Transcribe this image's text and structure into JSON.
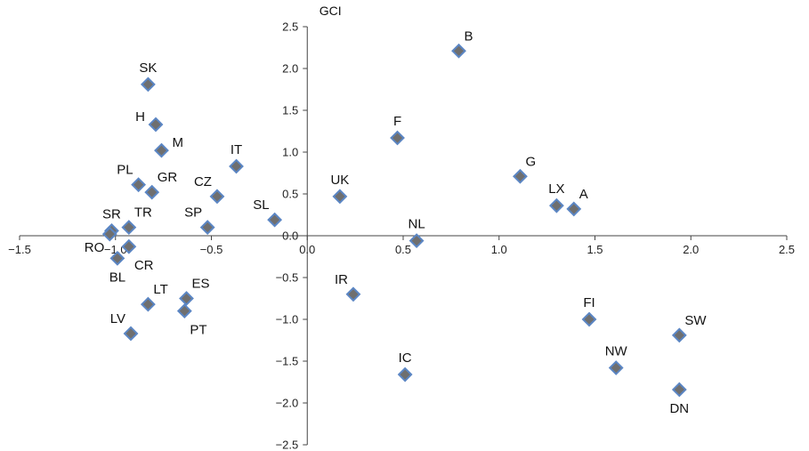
{
  "chart_data": {
    "type": "scatter",
    "title": "",
    "xlabel": "",
    "ylabel": "GCI",
    "xlim": [
      -1.5,
      2.5
    ],
    "ylim": [
      -2.5,
      2.5
    ],
    "xticks": [
      -1.5,
      -1.0,
      -0.5,
      0.0,
      0.5,
      1.0,
      1.5,
      2.0,
      2.5
    ],
    "xtick_labels": [
      "−1.5",
      "−1.0",
      "−0.5",
      "0.0",
      "0.5",
      "1.0",
      "1.5",
      "2.0",
      "2.5"
    ],
    "yticks": [
      2.5,
      2.0,
      1.5,
      1.0,
      0.5,
      0.0,
      -0.5,
      -1.0,
      -1.5,
      -2.0,
      -2.5
    ],
    "ytick_labels": [
      "2.5",
      "2.0",
      "1.5",
      "1.0",
      "0.5",
      "0.0",
      "−0.5",
      "−1.0",
      "−1.5",
      "−2.0",
      "−2.5"
    ],
    "marker_color": "#6f6f6f",
    "marker_edge_color": "#5b86c4",
    "points": [
      {
        "label": "B",
        "x": 0.79,
        "y": 2.21,
        "lpos": "above-right"
      },
      {
        "label": "SK",
        "x": -0.83,
        "y": 1.81,
        "lpos": "above"
      },
      {
        "label": "H",
        "x": -0.79,
        "y": 1.33,
        "lpos": "left"
      },
      {
        "label": "F",
        "x": 0.47,
        "y": 1.17,
        "lpos": "above"
      },
      {
        "label": "M",
        "x": -0.76,
        "y": 1.02,
        "lpos": "right"
      },
      {
        "label": "IT",
        "x": -0.37,
        "y": 0.83,
        "lpos": "above"
      },
      {
        "label": "G",
        "x": 1.11,
        "y": 0.71,
        "lpos": "above-right"
      },
      {
        "label": "PL",
        "x": -0.88,
        "y": 0.61,
        "lpos": "above-left"
      },
      {
        "label": "GR",
        "x": -0.81,
        "y": 0.52,
        "lpos": "above-right"
      },
      {
        "label": "CZ",
        "x": -0.47,
        "y": 0.47,
        "lpos": "above-left"
      },
      {
        "label": "UK",
        "x": 0.17,
        "y": 0.47,
        "lpos": "above"
      },
      {
        "label": "LX",
        "x": 1.3,
        "y": 0.36,
        "lpos": "above"
      },
      {
        "label": "A",
        "x": 1.39,
        "y": 0.32,
        "lpos": "above-right"
      },
      {
        "label": "SL",
        "x": -0.17,
        "y": 0.19,
        "lpos": "above-left"
      },
      {
        "label": "SP",
        "x": -0.52,
        "y": 0.1,
        "lpos": "above-left"
      },
      {
        "label": "TR",
        "x": -0.93,
        "y": 0.1,
        "lpos": "above-right"
      },
      {
        "label": "SR",
        "x": -1.02,
        "y": 0.06,
        "lpos": "above"
      },
      {
        "label": "RO",
        "x": -1.03,
        "y": 0.02,
        "lpos": "below-left"
      },
      {
        "label": "NL",
        "x": 0.57,
        "y": -0.06,
        "lpos": "above"
      },
      {
        "label": "CR",
        "x": -0.93,
        "y": -0.13,
        "lpos": "below-right"
      },
      {
        "label": "BL",
        "x": -0.99,
        "y": -0.27,
        "lpos": "below"
      },
      {
        "label": "IR",
        "x": 0.24,
        "y": -0.7,
        "lpos": "above-left"
      },
      {
        "label": "ES",
        "x": -0.63,
        "y": -0.75,
        "lpos": "above-right"
      },
      {
        "label": "LT",
        "x": -0.83,
        "y": -0.82,
        "lpos": "above-right"
      },
      {
        "label": "PT",
        "x": -0.64,
        "y": -0.9,
        "lpos": "below-right"
      },
      {
        "label": "FI",
        "x": 1.47,
        "y": -1.0,
        "lpos": "above"
      },
      {
        "label": "LV",
        "x": -0.92,
        "y": -1.17,
        "lpos": "above-left"
      },
      {
        "label": "SW",
        "x": 1.94,
        "y": -1.19,
        "lpos": "above-right"
      },
      {
        "label": "NW",
        "x": 1.61,
        "y": -1.58,
        "lpos": "above"
      },
      {
        "label": "IC",
        "x": 0.51,
        "y": -1.66,
        "lpos": "above"
      },
      {
        "label": "DN",
        "x": 1.94,
        "y": -1.84,
        "lpos": "below"
      }
    ]
  }
}
